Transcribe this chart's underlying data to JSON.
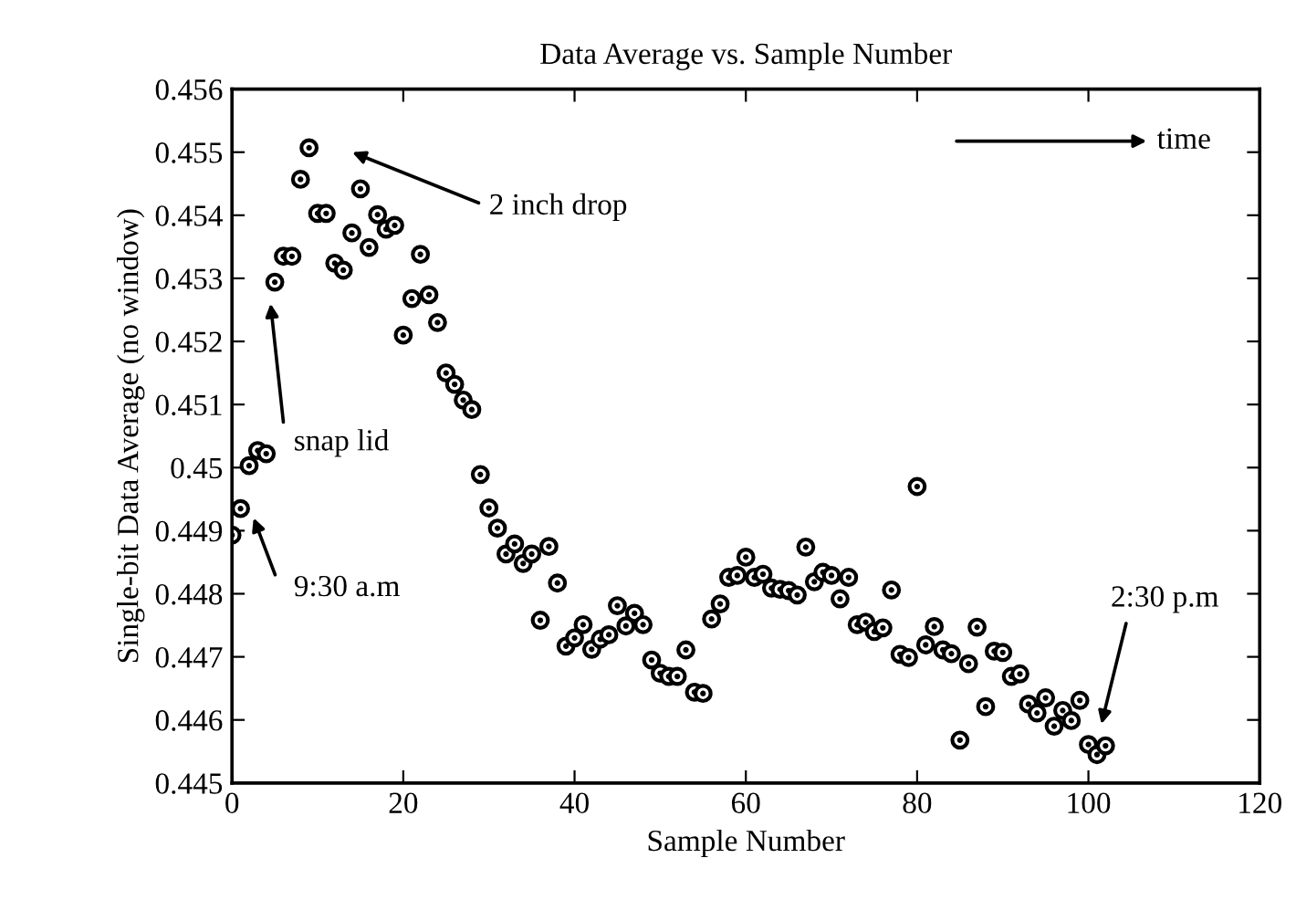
{
  "chart_data": {
    "type": "scatter",
    "title": "Data Average vs. Sample Number",
    "xlabel": "Sample Number",
    "ylabel": "Single-bit Data Average (no window)",
    "x": [
      0,
      1,
      2,
      3,
      4,
      5,
      6,
      7,
      8,
      9,
      10,
      11,
      12,
      13,
      14,
      15,
      16,
      17,
      18,
      19,
      20,
      21,
      22,
      23,
      24,
      25,
      26,
      27,
      28,
      29,
      30,
      31,
      32,
      33,
      34,
      35,
      36,
      37,
      38,
      39,
      40,
      41,
      42,
      43,
      44,
      45,
      46,
      47,
      48,
      49,
      50,
      51,
      52,
      53,
      54,
      55,
      56,
      57,
      58,
      59,
      60,
      61,
      62,
      63,
      64,
      65,
      66,
      67,
      68,
      69,
      70,
      71,
      72,
      73,
      74,
      75,
      76,
      77,
      78,
      79,
      80,
      81,
      82,
      83,
      84,
      85,
      86,
      87,
      88,
      89,
      90,
      91,
      92,
      93,
      94,
      95,
      96,
      97,
      98,
      99,
      100,
      101,
      102
    ],
    "values": [
      0.44893,
      0.44935,
      0.45003,
      0.45027,
      0.45022,
      0.45294,
      0.45335,
      0.45335,
      0.45457,
      0.45507,
      0.45403,
      0.45403,
      0.45324,
      0.45313,
      0.45372,
      0.45442,
      0.45349,
      0.45401,
      0.45378,
      0.45384,
      0.4521,
      0.45268,
      0.45338,
      0.45274,
      0.4523,
      0.4515,
      0.45132,
      0.45107,
      0.45092,
      0.44989,
      0.44936,
      0.44904,
      0.44863,
      0.44879,
      0.44848,
      0.44863,
      0.44758,
      0.44875,
      0.44817,
      0.44717,
      0.4473,
      0.44751,
      0.44712,
      0.44728,
      0.44735,
      0.44781,
      0.44749,
      0.44769,
      0.44751,
      0.44695,
      0.44674,
      0.44669,
      0.44669,
      0.44711,
      0.44644,
      0.44642,
      0.4476,
      0.44784,
      0.44826,
      0.44829,
      0.44858,
      0.44826,
      0.44831,
      0.44809,
      0.44807,
      0.44805,
      0.44798,
      0.44874,
      0.44819,
      0.44834,
      0.44829,
      0.44792,
      0.44826,
      0.44751,
      0.44755,
      0.4474,
      0.44746,
      0.44806,
      0.44704,
      0.44699,
      0.4497,
      0.44719,
      0.44748,
      0.44711,
      0.44705,
      0.44568,
      0.44689,
      0.44747,
      0.44621,
      0.44709,
      0.44707,
      0.44669,
      0.44673,
      0.44625,
      0.44611,
      0.44635,
      0.4459,
      0.44615,
      0.44599,
      0.44631,
      0.44561,
      0.44545,
      0.44559
    ],
    "color": "#000000",
    "marker": "circle",
    "xlim": [
      0,
      120
    ],
    "xticks": [
      0,
      20,
      40,
      60,
      80,
      100,
      120
    ],
    "ylim": [
      0.445,
      0.456
    ],
    "yticks": [
      0.445,
      0.446,
      0.447,
      0.448,
      0.449,
      0.45,
      0.451,
      0.452,
      0.453,
      0.454,
      0.455,
      0.456
    ],
    "grid": false,
    "annotations": [
      "2 inch drop",
      "snap lid",
      "9:30 a.m",
      "2:30 p.m",
      "time"
    ]
  }
}
